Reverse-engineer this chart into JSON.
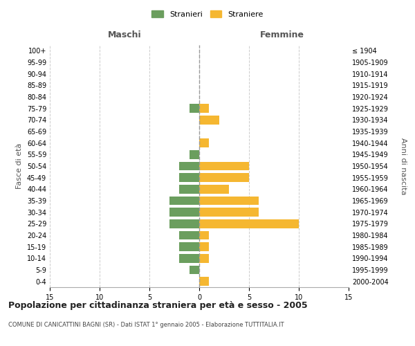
{
  "age_groups": [
    "100+",
    "95-99",
    "90-94",
    "85-89",
    "80-84",
    "75-79",
    "70-74",
    "65-69",
    "60-64",
    "55-59",
    "50-54",
    "45-49",
    "40-44",
    "35-39",
    "30-34",
    "25-29",
    "20-24",
    "15-19",
    "10-14",
    "5-9",
    "0-4"
  ],
  "birth_years": [
    "≤ 1904",
    "1905-1909",
    "1910-1914",
    "1915-1919",
    "1920-1924",
    "1925-1929",
    "1930-1934",
    "1935-1939",
    "1940-1944",
    "1945-1949",
    "1950-1954",
    "1955-1959",
    "1960-1964",
    "1965-1969",
    "1970-1974",
    "1975-1979",
    "1980-1984",
    "1985-1989",
    "1990-1994",
    "1995-1999",
    "2000-2004"
  ],
  "maschi": [
    0,
    0,
    0,
    0,
    0,
    1,
    0,
    0,
    0,
    1,
    2,
    2,
    2,
    3,
    3,
    3,
    2,
    2,
    2,
    1,
    0
  ],
  "femmine": [
    0,
    0,
    0,
    0,
    0,
    1,
    2,
    0,
    1,
    0,
    5,
    5,
    3,
    6,
    6,
    10,
    1,
    1,
    1,
    0,
    1
  ],
  "maschi_color": "#6b9e5e",
  "femmine_color": "#f5b731",
  "center_line_color": "#999999",
  "grid_color": "#cccccc",
  "bg_color": "#ffffff",
  "title": "Popolazione per cittadinanza straniera per età e sesso - 2005",
  "subtitle": "COMUNE DI CANICATTINI BAGNI (SR) - Dati ISTAT 1° gennaio 2005 - Elaborazione TUTTITALIA.IT",
  "ylabel_left": "Fasce di età",
  "ylabel_right": "Anni di nascita",
  "xlabel_maschi": "Maschi",
  "xlabel_femmine": "Femmine",
  "legend_maschi": "Stranieri",
  "legend_femmine": "Straniere",
  "xlim": 15,
  "bar_height": 0.75
}
